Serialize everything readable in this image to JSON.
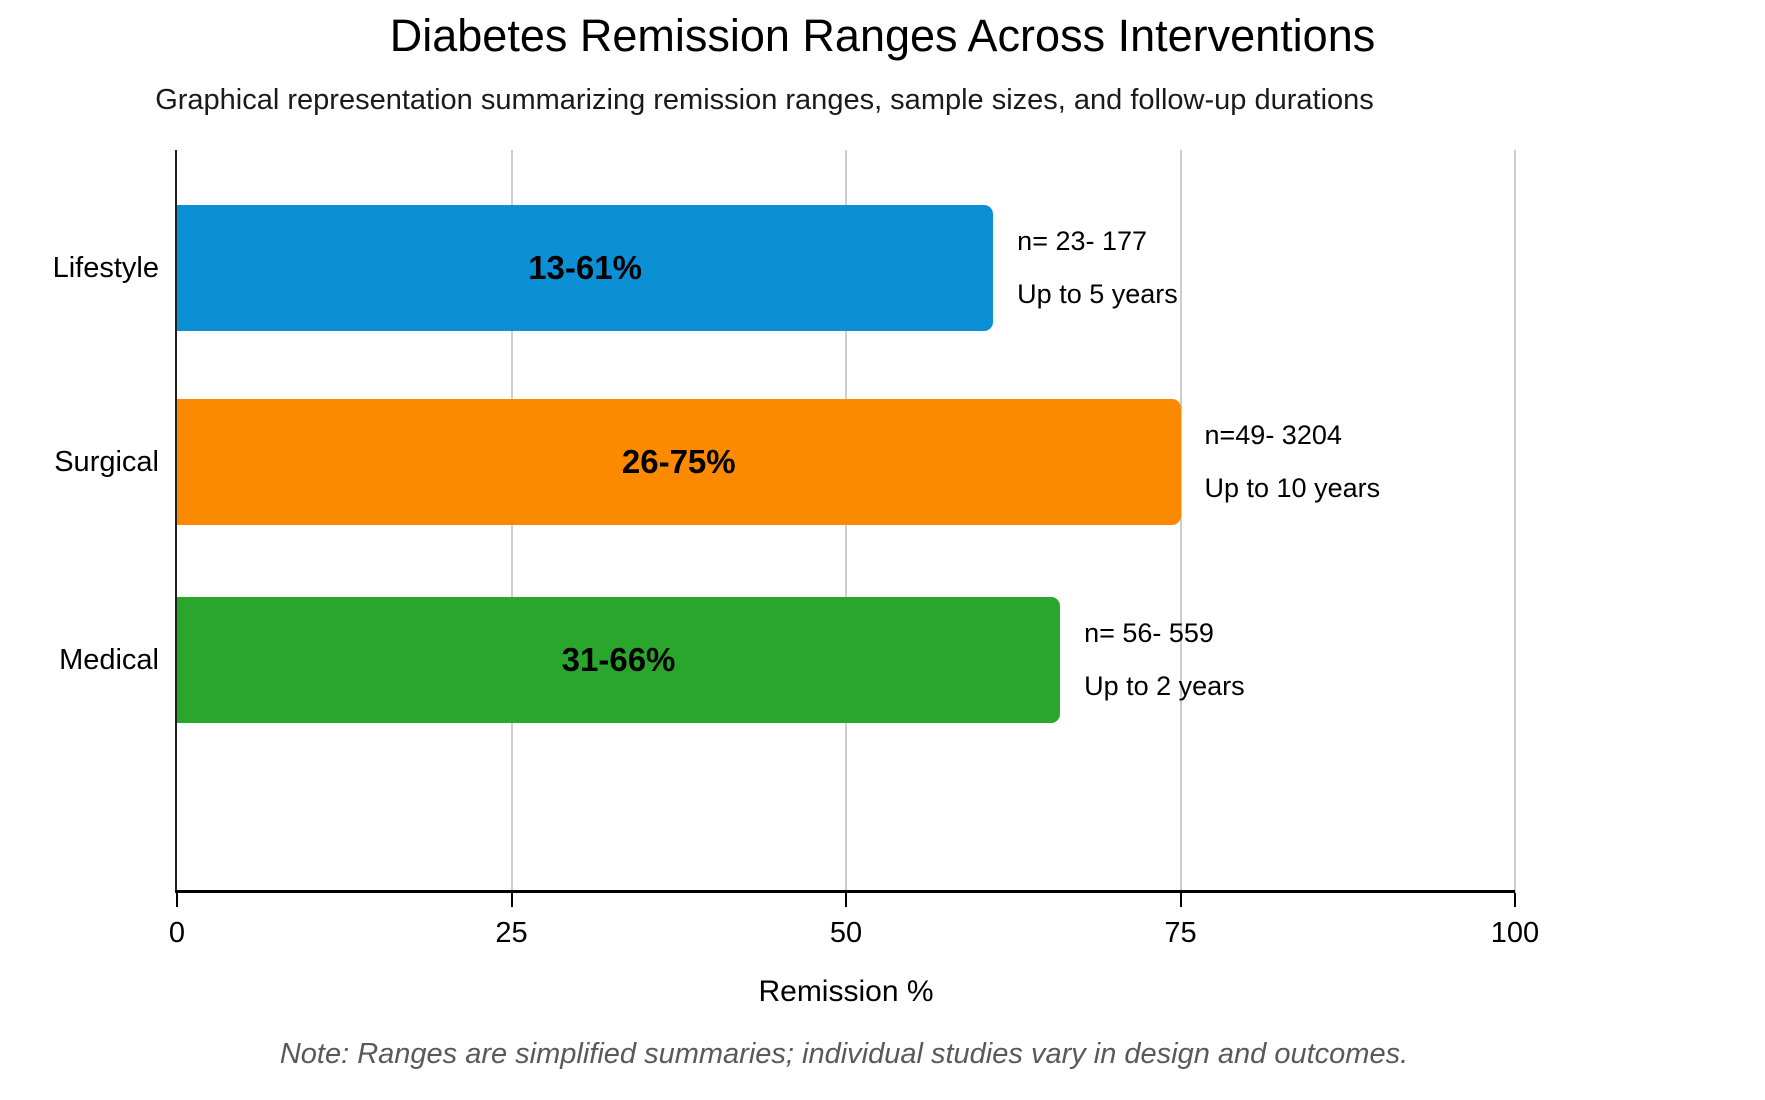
{
  "header": {
    "title": "Diabetes Remission Ranges Across Interventions",
    "subtitle": "Graphical representation summarizing remission ranges, sample sizes, and follow-up durations"
  },
  "chart_data": {
    "type": "bar",
    "orientation": "horizontal",
    "title": "Diabetes Remission Ranges Across Interventions",
    "subtitle": "Graphical representation summarizing remission ranges, sample sizes, and follow-up durations",
    "categories": [
      "Lifestyle",
      "Surgical",
      "Medical"
    ],
    "series": [
      {
        "name": "Remission % (upper bound of range)",
        "values": [
          61,
          75,
          66
        ]
      }
    ],
    "bars": [
      {
        "category": "Lifestyle",
        "remission_min_pct": 13,
        "remission_max_pct": 61,
        "range_label": "13-61%",
        "sample_label": "n= 23- 177",
        "followup_label": "Up to 5 years",
        "color": "#0b90d5"
      },
      {
        "category": "Surgical",
        "remission_min_pct": 26,
        "remission_max_pct": 75,
        "range_label": "26-75%",
        "sample_label": "n=49- 3204",
        "followup_label": "Up to 10 years",
        "color": "#fc8a00"
      },
      {
        "category": "Medical",
        "remission_min_pct": 31,
        "remission_max_pct": 66,
        "range_label": "31-66%",
        "sample_label": "n= 56- 559",
        "followup_label": "Up to 2 years",
        "color": "#2aa62d"
      }
    ],
    "xlabel": "Remission %",
    "xticks": [
      0,
      25,
      50,
      75,
      100
    ],
    "xlim": [
      0,
      100
    ],
    "grid": "vertical-gridlines-at-ticks",
    "legend": "none",
    "colors": {
      "axis": "#000000",
      "gridline": "#cdcdcd"
    }
  },
  "footer": {
    "note": "Note: Ranges are simplified summaries; individual studies vary in design and outcomes."
  }
}
